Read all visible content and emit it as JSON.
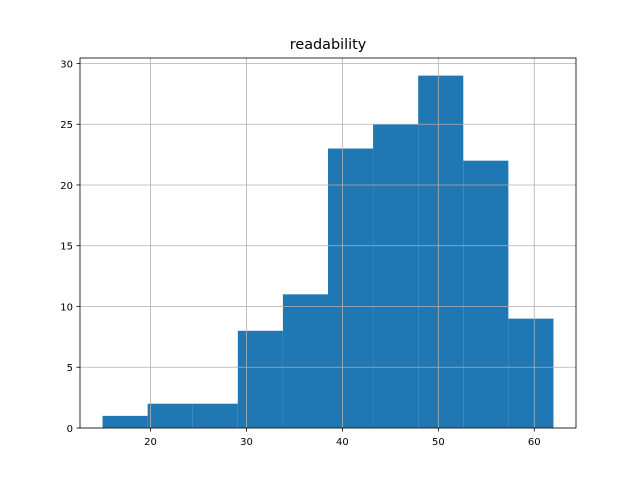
{
  "chart_data": {
    "type": "bar",
    "subtype": "histogram",
    "title": "readability",
    "xlabel": "",
    "ylabel": "",
    "bin_edges": [
      15.0,
      19.7,
      24.4,
      29.1,
      33.8,
      38.5,
      43.2,
      47.9,
      52.6,
      57.3,
      62.0
    ],
    "values": [
      1,
      2,
      2,
      8,
      11,
      23,
      25,
      29,
      22,
      9
    ],
    "xlim": [
      12.65,
      64.35
    ],
    "ylim": [
      0,
      30.45
    ],
    "xticks": [
      20,
      30,
      40,
      50,
      60
    ],
    "yticks": [
      0,
      5,
      10,
      15,
      20,
      25,
      30
    ],
    "grid": true,
    "bar_color": "#1f77b4",
    "grid_color": "#b0b0b0"
  }
}
